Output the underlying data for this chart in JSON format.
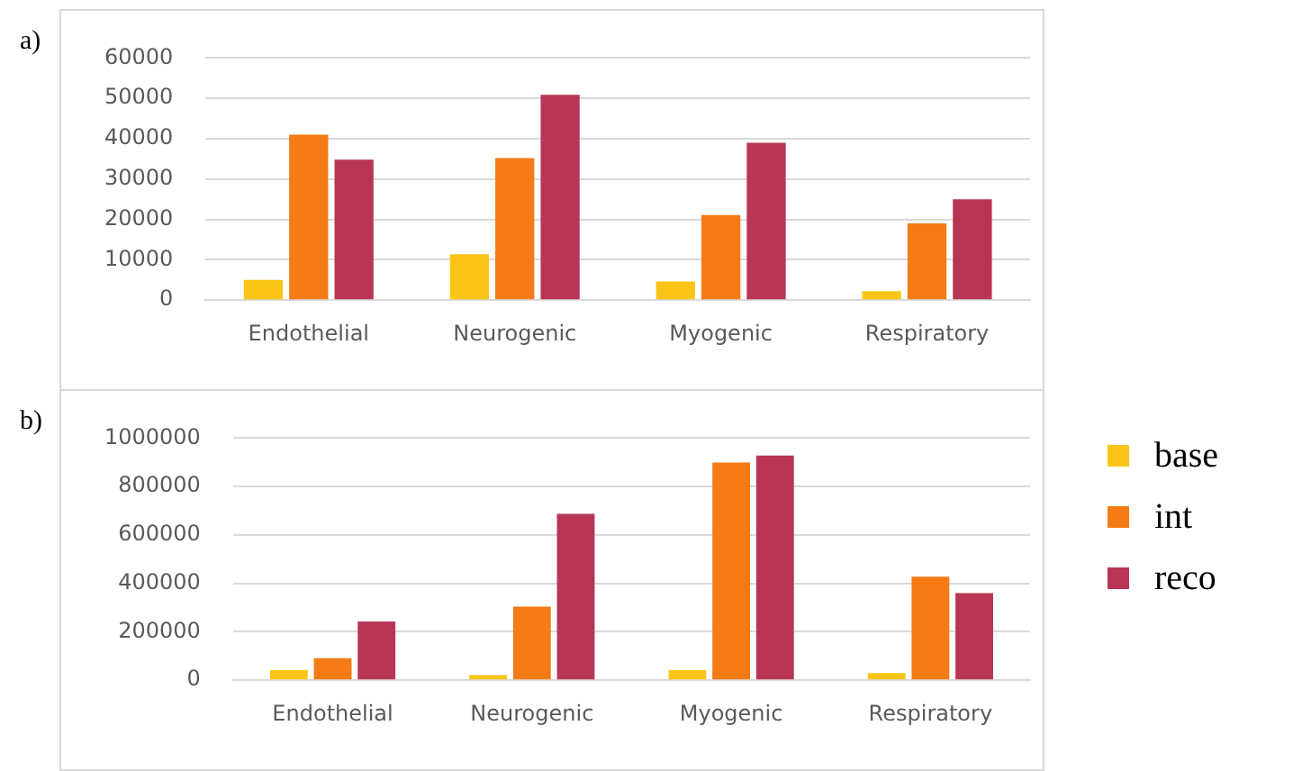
{
  "chart_data": [
    {
      "type": "bar",
      "title": "a)",
      "categories": [
        "Endothelial",
        "Neurogenic",
        "Myogenic",
        "Respiratory"
      ],
      "series": [
        {
          "color": "#fac516",
          "values": [
            5000,
            11400,
            4600,
            2200
          ]
        },
        {
          "color": "#f47b16",
          "values": [
            41000,
            35200,
            21100,
            19000
          ]
        },
        {
          "color": "#b83555",
          "values": [
            34800,
            50900,
            39000,
            25000
          ]
        }
      ],
      "ylim": [
        0,
        60000
      ],
      "yticks": [
        0,
        10000,
        20000,
        30000,
        40000,
        50000,
        60000
      ],
      "grid": "y",
      "legend": false
    },
    {
      "type": "bar",
      "title": "b)",
      "categories": [
        "Endothelial",
        "Neurogenic",
        "Myogenic",
        "Respiratory"
      ],
      "series": [
        {
          "name": "base",
          "color": "#fac516",
          "values": [
            42000,
            21000,
            42000,
            30000
          ]
        },
        {
          "name": "int",
          "color": "#f47b16",
          "values": [
            91000,
            304000,
            899000,
            428000
          ]
        },
        {
          "name": "reco",
          "color": "#b83555",
          "values": [
            243000,
            687000,
            928000,
            360000
          ]
        }
      ],
      "ylim": [
        0,
        1000000
      ],
      "yticks": [
        0,
        200000,
        400000,
        600000,
        800000,
        1000000
      ],
      "grid": "y",
      "legend": "right"
    }
  ]
}
